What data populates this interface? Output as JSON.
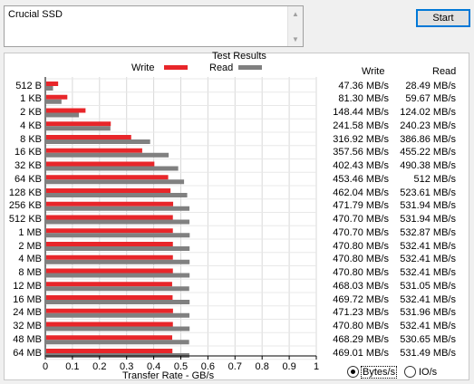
{
  "description": {
    "value": "Crucial SSD"
  },
  "toolbar": {
    "start_label": "Start"
  },
  "panel": {
    "title": "Test Results"
  },
  "legend": {
    "write": "Write",
    "read": "Read"
  },
  "columns": {
    "write": "Write",
    "read": "Read"
  },
  "colors": {
    "write": "#e8262a",
    "read": "#808080"
  },
  "chart_data": {
    "type": "bar",
    "orientation": "horizontal",
    "title": "Test Results",
    "xlabel": "Transfer Rate - GB/s",
    "xlim": [
      0,
      1
    ],
    "xticks": [
      "0",
      "0.1",
      "0.2",
      "0.3",
      "0.4",
      "0.5",
      "0.6",
      "0.7",
      "0.8",
      "0.9",
      "1"
    ],
    "grid": true,
    "legend": "top",
    "categories": [
      "512 B",
      "1 KB",
      "2 KB",
      "4 KB",
      "8 KB",
      "16 KB",
      "32 KB",
      "64 KB",
      "128 KB",
      "256 KB",
      "512 KB",
      "1 MB",
      "2 MB",
      "4 MB",
      "8 MB",
      "12 MB",
      "16 MB",
      "24 MB",
      "32 MB",
      "48 MB",
      "64 MB"
    ],
    "series": [
      {
        "name": "Write",
        "unit": "GB/s",
        "values": [
          0.04736,
          0.0813,
          0.14844,
          0.24158,
          0.31692,
          0.35756,
          0.40243,
          0.45346,
          0.46204,
          0.47179,
          0.4707,
          0.4707,
          0.4708,
          0.4708,
          0.4708,
          0.46803,
          0.46972,
          0.47123,
          0.4708,
          0.46829,
          0.46901
        ]
      },
      {
        "name": "Read",
        "unit": "GB/s",
        "values": [
          0.02849,
          0.05967,
          0.12402,
          0.24023,
          0.38686,
          0.45522,
          0.49038,
          0.512,
          0.52361,
          0.53194,
          0.53194,
          0.53287,
          0.53241,
          0.53241,
          0.53241,
          0.53105,
          0.53241,
          0.53196,
          0.53241,
          0.53065,
          0.53149
        ]
      }
    ],
    "table": {
      "write": [
        "47.36 MB/s",
        "81.30 MB/s",
        "148.44 MB/s",
        "241.58 MB/s",
        "316.92 MB/s",
        "357.56 MB/s",
        "402.43 MB/s",
        "453.46 MB/s",
        "462.04 MB/s",
        "471.79 MB/s",
        "470.70 MB/s",
        "470.70 MB/s",
        "470.80 MB/s",
        "470.80 MB/s",
        "470.80 MB/s",
        "468.03 MB/s",
        "469.72 MB/s",
        "471.23 MB/s",
        "470.80 MB/s",
        "468.29 MB/s",
        "469.01 MB/s"
      ],
      "read": [
        "28.49 MB/s",
        "59.67 MB/s",
        "124.02 MB/s",
        "240.23 MB/s",
        "386.86 MB/s",
        "455.22 MB/s",
        "490.38 MB/s",
        "512 MB/s",
        "523.61 MB/s",
        "531.94 MB/s",
        "531.94 MB/s",
        "532.87 MB/s",
        "532.41 MB/s",
        "532.41 MB/s",
        "532.41 MB/s",
        "531.05 MB/s",
        "532.41 MB/s",
        "531.96 MB/s",
        "532.41 MB/s",
        "530.65 MB/s",
        "531.49 MB/s"
      ]
    }
  },
  "units": {
    "bytes_label": "Bytes/s",
    "io_label": "IO/s",
    "selected": "Bytes/s"
  }
}
